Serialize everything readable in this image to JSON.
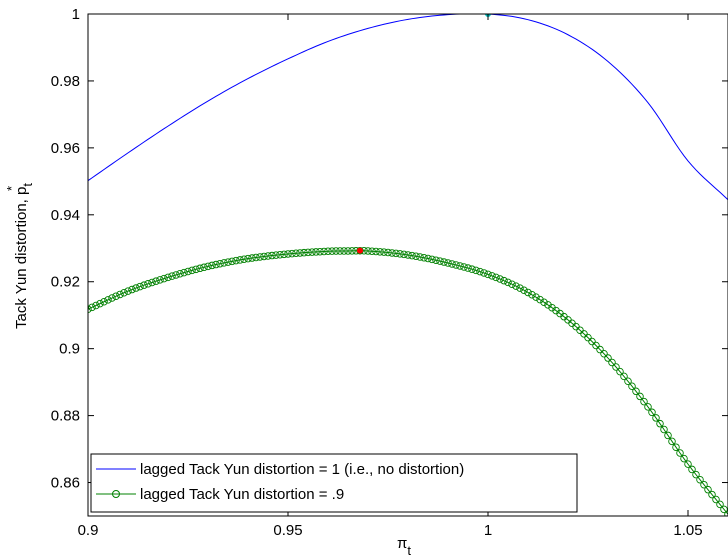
{
  "chart_data": {
    "type": "line",
    "title": "",
    "xlabel": "π",
    "xlabel_sub": "t",
    "ylabel": "Tack Yun distortion, p",
    "ylabel_sub": "t",
    "ylabel_sup": "*",
    "xlim": [
      0.9,
      1.06
    ],
    "ylim": [
      0.85,
      1.0
    ],
    "xticks": [
      0.9,
      0.95,
      1,
      1.05
    ],
    "xtick_labels": [
      "0.9",
      "0.95",
      "1",
      "1.05"
    ],
    "yticks": [
      0.86,
      0.88,
      0.9,
      0.92,
      0.94,
      0.96,
      0.98,
      1
    ],
    "ytick_labels": [
      "0.86",
      "0.88",
      "0.9",
      "0.92",
      "0.94",
      "0.96",
      "0.98",
      "1"
    ],
    "grid": false,
    "legend_position": "bottom-left",
    "series": [
      {
        "name": "lagged Tack Yun distortion = 1 (i.e., no distortion)",
        "color": "#0000ff",
        "marker": "none",
        "x": [
          0.9,
          0.91,
          0.92,
          0.93,
          0.94,
          0.95,
          0.96,
          0.97,
          0.98,
          0.99,
          1.0,
          1.01,
          1.02,
          1.03,
          1.04,
          1.05,
          1.06
        ],
        "y": [
          0.9502,
          0.9585,
          0.9665,
          0.974,
          0.9807,
          0.9866,
          0.9918,
          0.9957,
          0.9984,
          0.9998,
          1.0,
          0.9983,
          0.9938,
          0.9858,
          0.9735,
          0.9561,
          0.9445
        ],
        "peak": {
          "x": 1.0,
          "y": 1.0,
          "color": "#00c0c0"
        }
      },
      {
        "name": "lagged Tack Yun distortion = .9",
        "color": "#008000",
        "marker": "circle",
        "x": [
          0.9,
          0.91,
          0.92,
          0.93,
          0.94,
          0.95,
          0.96,
          0.965,
          0.97,
          0.98,
          0.99,
          1.0,
          1.01,
          1.02,
          1.03,
          1.04,
          1.05,
          1.06
        ],
        "y": [
          0.9118,
          0.9172,
          0.9213,
          0.9246,
          0.9269,
          0.9283,
          0.9291,
          0.9292,
          0.9292,
          0.928,
          0.9256,
          0.9222,
          0.9168,
          0.9086,
          0.8972,
          0.8826,
          0.8655,
          0.8505
        ],
        "peak": {
          "x": 0.968,
          "y": 0.9293,
          "color": "#ff0000"
        }
      }
    ]
  }
}
